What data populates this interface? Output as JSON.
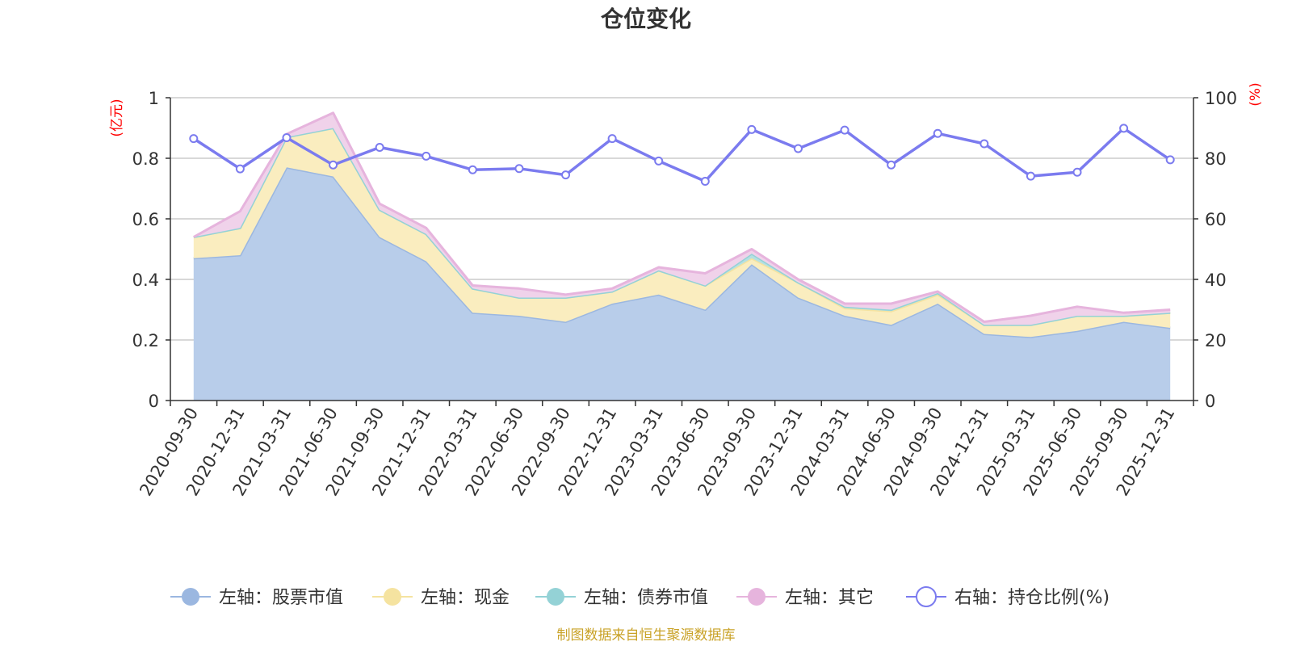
{
  "chart_data": {
    "type": "area",
    "title": "仓位变化",
    "categories": [
      "2020-09-30",
      "2020-12-31",
      "2021-03-31",
      "2021-06-30",
      "2021-09-30",
      "2021-12-31",
      "2022-03-31",
      "2022-06-30",
      "2022-09-30",
      "2022-12-31",
      "2023-03-31",
      "2023-06-30",
      "2023-09-30",
      "2023-12-31",
      "2024-03-31",
      "2024-06-30",
      "2024-09-30",
      "2024-12-31",
      "2025-03-31",
      "2025-06-30",
      "2025-09-30",
      "2025-12-31"
    ],
    "left_axis": {
      "unit": "(亿元)",
      "ylim": [
        0,
        1
      ],
      "ticks": [
        "0",
        "0.2",
        "0.4",
        "0.6",
        "0.8",
        "1"
      ]
    },
    "right_axis": {
      "unit": "(%)",
      "ylim": [
        0,
        100
      ],
      "ticks": [
        "0",
        "20",
        "40",
        "60",
        "80",
        "100"
      ]
    },
    "series": [
      {
        "name": "左轴：股票市值",
        "axis": "left",
        "stack": true,
        "color": "#9bb7e0",
        "fill": "#b8cdea",
        "values": [
          0.47,
          0.48,
          0.77,
          0.74,
          0.54,
          0.46,
          0.29,
          0.28,
          0.26,
          0.32,
          0.35,
          0.3,
          0.45,
          0.34,
          0.28,
          0.25,
          0.32,
          0.22,
          0.21,
          0.23,
          0.26,
          0.24
        ]
      },
      {
        "name": "左轴：现金",
        "axis": "left",
        "stack": true,
        "color": "#f5e3a0",
        "fill": "#faedbf",
        "values": [
          0.07,
          0.09,
          0.1,
          0.16,
          0.09,
          0.09,
          0.08,
          0.06,
          0.08,
          0.04,
          0.08,
          0.08,
          0.02,
          0.05,
          0.025,
          0.045,
          0.03,
          0.03,
          0.04,
          0.05,
          0.02,
          0.05
        ]
      },
      {
        "name": "左轴：债券市值",
        "axis": "left",
        "stack": true,
        "color": "#94d2d6",
        "fill": "#b5e0e2",
        "values": [
          0,
          0,
          0,
          0,
          0,
          0,
          0,
          0,
          0,
          0,
          0,
          0,
          0.015,
          0,
          0.005,
          0.005,
          0.005,
          0,
          0,
          0,
          0,
          0
        ]
      },
      {
        "name": "左轴：其它",
        "axis": "left",
        "stack": true,
        "color": "#e6b4dd",
        "fill": "#f0d2ea",
        "values": [
          0,
          0.055,
          0.01,
          0.05,
          0.02,
          0.02,
          0.01,
          0.03,
          0.01,
          0.01,
          0.01,
          0.04,
          0.015,
          0.01,
          0.01,
          0.02,
          0.005,
          0.01,
          0.03,
          0.03,
          0.01,
          0.01
        ]
      },
      {
        "name": "右轴：持仓比例(%)",
        "axis": "right",
        "stack": false,
        "color": "#7b7bef",
        "values": [
          86.5,
          76.5,
          86.8,
          77.8,
          83.6,
          80.7,
          76.2,
          76.6,
          74.5,
          86.5,
          79.1,
          72.4,
          89.5,
          83.2,
          89.3,
          77.8,
          88.2,
          84.8,
          74.1,
          75.4,
          89.9,
          79.5
        ]
      }
    ],
    "legend": [
      "左轴：股票市值",
      "左轴：现金",
      "左轴：债券市值",
      "左轴：其它",
      "右轴：持仓比例(%)"
    ],
    "legend_position": "bottom",
    "grid": true
  },
  "footer": {
    "source": "制图数据来自恒生聚源数据库"
  }
}
